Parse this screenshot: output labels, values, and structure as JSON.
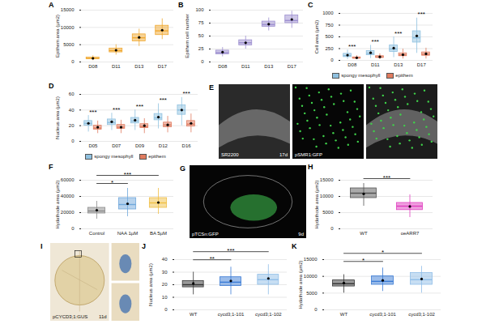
{
  "chart_data": [
    {
      "panel": "A",
      "type": "box",
      "ylabel": "Epithem area (µm2)",
      "categories": [
        "D08",
        "D11",
        "D13",
        "D17"
      ],
      "color": "#f0a830",
      "ylim": [
        0,
        15000
      ],
      "yticks": [
        0,
        5000,
        10000,
        15000
      ],
      "grid": true,
      "stats": {
        "low": [
          400,
          2000,
          4500,
          6500
        ],
        "q1": [
          800,
          2800,
          6000,
          7800
        ],
        "median": [
          1000,
          3300,
          7000,
          9000
        ],
        "q3": [
          1300,
          3900,
          8000,
          10500
        ],
        "high": [
          1800,
          5000,
          9500,
          12500
        ],
        "mean": [
          1050,
          3400,
          7100,
          9200
        ]
      }
    },
    {
      "panel": "B",
      "type": "box",
      "ylabel": "Epithem cell number",
      "categories": [
        "D08",
        "D11",
        "D13",
        "D17"
      ],
      "color": "#9d8fd0",
      "ylim": [
        0,
        100
      ],
      "yticks": [
        0,
        25,
        50,
        75,
        100
      ],
      "grid": true,
      "stats": {
        "low": [
          10,
          25,
          60,
          65
        ],
        "q1": [
          15,
          32,
          68,
          75
        ],
        "median": [
          18,
          37,
          72,
          80
        ],
        "q3": [
          22,
          42,
          78,
          90
        ],
        "high": [
          28,
          50,
          85,
          98
        ],
        "mean": [
          19,
          37,
          73,
          82
        ]
      }
    },
    {
      "panel": "C",
      "type": "box",
      "ylabel": "Cell area (µm2)",
      "categories": [
        "D08",
        "D11",
        "D13",
        "D17"
      ],
      "ylim": [
        0,
        1000
      ],
      "yticks": [
        0,
        250,
        500,
        750,
        1000
      ],
      "grid": true,
      "legend": "bottom",
      "series": [
        {
          "name": "spongy mesophyll",
          "color": "#8fc1e0",
          "low": [
            20,
            40,
            60,
            150
          ],
          "q1": [
            70,
            110,
            180,
            380
          ],
          "median": [
            100,
            150,
            240,
            480
          ],
          "q3": [
            140,
            200,
            320,
            620
          ],
          "high": [
            220,
            320,
            500,
            900
          ],
          "mean": [
            110,
            160,
            260,
            520
          ]
        },
        {
          "name": "epithem",
          "color": "#e07b5f",
          "low": [
            20,
            20,
            30,
            30
          ],
          "q1": [
            40,
            55,
            90,
            100
          ],
          "median": [
            50,
            70,
            115,
            130
          ],
          "q3": [
            65,
            90,
            150,
            170
          ],
          "high": [
            100,
            140,
            240,
            260
          ],
          "mean": [
            55,
            75,
            120,
            140
          ]
        }
      ],
      "significance": [
        "***",
        "***",
        "***",
        "***"
      ]
    },
    {
      "panel": "D",
      "type": "box",
      "ylabel": "Nucleus area (µm2)",
      "categories": [
        "D05",
        "D07",
        "D09",
        "D12",
        "D16"
      ],
      "ylim": [
        0,
        60
      ],
      "yticks": [
        0,
        20,
        40,
        60
      ],
      "grid": true,
      "legend": "bottom",
      "series": [
        {
          "name": "spongy mesophyll",
          "color": "#8fc1e0",
          "low": [
            12,
            14,
            14,
            16,
            20
          ],
          "q1": [
            20,
            21,
            23,
            27,
            34
          ],
          "median": [
            23,
            24,
            26,
            30,
            40
          ],
          "q3": [
            26,
            28,
            30,
            35,
            46
          ],
          "high": [
            33,
            36,
            40,
            48,
            56
          ],
          "mean": [
            23,
            25,
            27,
            31,
            40
          ]
        },
        {
          "name": "epithem",
          "color": "#e07b5f",
          "low": [
            10,
            10,
            10,
            11,
            11
          ],
          "q1": [
            15,
            16,
            17,
            18,
            19
          ],
          "median": [
            17,
            18,
            19,
            21,
            22
          ],
          "q3": [
            20,
            21,
            22,
            24,
            26
          ],
          "high": [
            26,
            27,
            29,
            32,
            35
          ],
          "mean": [
            18,
            18,
            20,
            21,
            23
          ]
        }
      ],
      "significance": [
        "***",
        "***",
        "***",
        "***",
        "***"
      ]
    },
    {
      "panel": "E",
      "type": "image",
      "frames": [
        [
          "SR2200",
          "17d"
        ],
        [
          "pSMR1:GFP"
        ],
        []
      ]
    },
    {
      "panel": "F",
      "type": "box",
      "ylabel": "Hydathode area (µm2)",
      "categories": [
        "Control",
        "NAA 1µM",
        "BA 5µM"
      ],
      "colors": [
        "#8c8c8c",
        "#6fa8dc",
        "#f0bf45"
      ],
      "ylim": [
        0,
        60000
      ],
      "yticks": [
        0,
        20000,
        40000,
        60000
      ],
      "grid": true,
      "stats": {
        "low": [
          12000,
          15000,
          18000
        ],
        "q1": [
          19000,
          24000,
          26000
        ],
        "median": [
          22000,
          30000,
          32000
        ],
        "q3": [
          26000,
          38000,
          38000
        ],
        "high": [
          34000,
          50000,
          50000
        ],
        "mean": [
          23000,
          31000,
          32500
        ]
      },
      "brackets": [
        {
          "from": "Control",
          "to": "NAA 1µM",
          "label": "*"
        },
        {
          "from": "Control",
          "to": "BA 5µM",
          "label": "***"
        }
      ]
    },
    {
      "panel": "G",
      "type": "image",
      "frames": [
        [
          "pTCSn:GFP",
          "9d"
        ]
      ]
    },
    {
      "panel": "H",
      "type": "box",
      "ylabel": "Hydathode area (µm2)",
      "categories": [
        "WT",
        "oeARR7"
      ],
      "colors": [
        "#555555",
        "#e040c0"
      ],
      "ylim": [
        0,
        15000
      ],
      "yticks": [
        0,
        5000,
        10000,
        15000
      ],
      "grid": true,
      "stats": {
        "low": [
          7000,
          3500
        ],
        "q1": [
          9500,
          5800
        ],
        "median": [
          11000,
          7000
        ],
        "q3": [
          12500,
          8000
        ],
        "high": [
          14000,
          10500
        ],
        "mean": [
          10800,
          6900
        ]
      },
      "brackets": [
        {
          "from": "WT",
          "to": "oeARR7",
          "label": "***"
        }
      ]
    },
    {
      "panel": "I",
      "type": "image",
      "frames": [
        [
          "pCYCD3;1:GUS",
          "11d"
        ]
      ]
    },
    {
      "panel": "J",
      "type": "box",
      "ylabel": "Nucleus area (µm2)",
      "categories": [
        "WT",
        "cycd3;1-101",
        "cycd3;1-102"
      ],
      "colors": [
        "#333333",
        "#3a7bd5",
        "#8fbde8"
      ],
      "ylim": [
        0,
        40
      ],
      "yticks": [
        0,
        10,
        20,
        30,
        40
      ],
      "grid": true,
      "stats": {
        "low": [
          12,
          12,
          12
        ],
        "q1": [
          18,
          19,
          20
        ],
        "median": [
          20,
          22,
          24
        ],
        "q3": [
          23,
          26,
          28
        ],
        "high": [
          30,
          34,
          36
        ],
        "mean": [
          21,
          23,
          25
        ]
      },
      "brackets": [
        {
          "from": "WT",
          "to": "cycd3;1-101",
          "label": "**"
        },
        {
          "from": "WT",
          "to": "cycd3;1-102",
          "label": "***"
        }
      ]
    },
    {
      "panel": "K",
      "type": "box",
      "ylabel": "Hydathode area (µm2)",
      "categories": [
        "WT",
        "cycd3;1-101",
        "cycd3;1-102"
      ],
      "colors": [
        "#333333",
        "#3a7bd5",
        "#8fbde8"
      ],
      "ylim": [
        0,
        15000
      ],
      "yticks": [
        0,
        5000,
        10000,
        15000
      ],
      "grid": true,
      "stats": {
        "low": [
          5000,
          5500,
          5000
        ],
        "q1": [
          7000,
          7500,
          7500
        ],
        "median": [
          7800,
          8500,
          9000
        ],
        "q3": [
          8800,
          10000,
          11000
        ],
        "high": [
          10500,
          12500,
          13000
        ],
        "mean": [
          8000,
          8800,
          9200
        ]
      },
      "brackets": [
        {
          "from": "WT",
          "to": "cycd3;1-101",
          "label": "*"
        },
        {
          "from": "WT",
          "to": "cycd3;1-102",
          "label": "*"
        }
      ]
    }
  ]
}
